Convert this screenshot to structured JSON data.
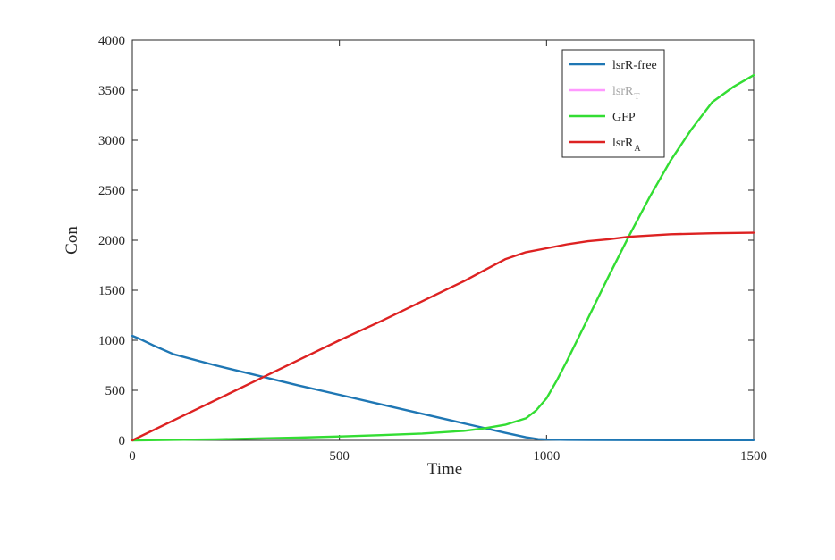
{
  "chart_data": {
    "type": "line",
    "title": "",
    "xlabel": "Time",
    "ylabel": "Con",
    "xlim": [
      0,
      1500
    ],
    "ylim": [
      0,
      4000
    ],
    "xticks": [
      0,
      500,
      1000,
      1500
    ],
    "yticks": [
      0,
      500,
      1000,
      1500,
      2000,
      2500,
      3000,
      3500,
      4000
    ],
    "grid": false,
    "legend_position": "top-right",
    "series": [
      {
        "name": "lsrR-free",
        "name_base": "lsrR-free",
        "name_sub": "",
        "color": "#1f77b4",
        "legend_text_color": "#262626",
        "x": [
          0,
          20,
          50,
          100,
          200,
          300,
          400,
          500,
          600,
          700,
          800,
          900,
          950,
          980,
          1000,
          1050,
          1100,
          1200,
          1300,
          1400,
          1500
        ],
        "y": [
          1045,
          1010,
          950,
          860,
          750,
          650,
          550,
          455,
          360,
          265,
          170,
          75,
          30,
          12,
          8,
          5,
          4,
          3,
          2,
          2,
          2
        ]
      },
      {
        "name": "lsrR_T",
        "name_base": "lsrR",
        "name_sub": "T",
        "color": "#ff99ff",
        "legend_text_color": "#a6a6a6",
        "x": [],
        "y": []
      },
      {
        "name": "GFP",
        "name_base": "GFP",
        "name_sub": "",
        "color": "#33dd33",
        "legend_text_color": "#262626",
        "x": [
          0,
          100,
          200,
          300,
          400,
          500,
          600,
          700,
          800,
          850,
          900,
          950,
          975,
          1000,
          1025,
          1050,
          1100,
          1150,
          1200,
          1250,
          1300,
          1350,
          1400,
          1450,
          1500
        ],
        "y": [
          0,
          5,
          10,
          18,
          27,
          38,
          52,
          68,
          95,
          120,
          155,
          220,
          300,
          420,
          600,
          800,
          1220,
          1640,
          2050,
          2440,
          2800,
          3110,
          3380,
          3530,
          3650
        ]
      },
      {
        "name": "lsrR_A",
        "name_base": "lsrR",
        "name_sub": "A",
        "color": "#dd2222",
        "legend_text_color": "#262626",
        "x": [
          0,
          100,
          200,
          300,
          400,
          500,
          600,
          700,
          800,
          850,
          900,
          950,
          1000,
          1050,
          1100,
          1150,
          1200,
          1300,
          1400,
          1500
        ],
        "y": [
          0,
          200,
          400,
          600,
          800,
          1000,
          1190,
          1390,
          1590,
          1700,
          1810,
          1880,
          1920,
          1960,
          1990,
          2010,
          2035,
          2060,
          2070,
          2075
        ]
      }
    ]
  }
}
